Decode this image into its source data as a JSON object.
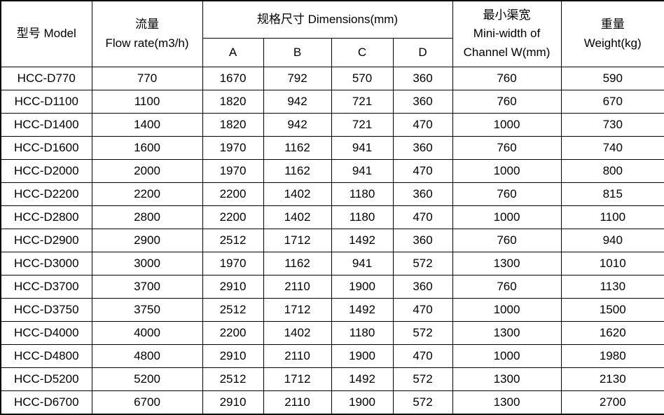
{
  "table": {
    "header": {
      "model": "型号 Model",
      "flow_cn": "流量",
      "flow_en": "Flow rate(m3/h)",
      "dimensions": "规格尺寸 Dimensions(mm)",
      "dim_cols": [
        "A",
        "B",
        "C",
        "D"
      ],
      "channel_cn": "最小渠宽",
      "channel_en_line1": "Mini-width of",
      "channel_en_line2": "Channel W(mm)",
      "weight_cn": "重量",
      "weight_en": "Weight(kg)"
    },
    "rows": [
      [
        "HCC-D770",
        "770",
        "1670",
        "792",
        "570",
        "360",
        "760",
        "590"
      ],
      [
        "HCC-D1100",
        "1100",
        "1820",
        "942",
        "721",
        "360",
        "760",
        "670"
      ],
      [
        "HCC-D1400",
        "1400",
        "1820",
        "942",
        "721",
        "470",
        "1000",
        "730"
      ],
      [
        "HCC-D1600",
        "1600",
        "1970",
        "1162",
        "941",
        "360",
        "760",
        "740"
      ],
      [
        "HCC-D2000",
        "2000",
        "1970",
        "1162",
        "941",
        "470",
        "1000",
        "800"
      ],
      [
        "HCC-D2200",
        "2200",
        "2200",
        "1402",
        "1180",
        "360",
        "760",
        "815"
      ],
      [
        "HCC-D2800",
        "2800",
        "2200",
        "1402",
        "1180",
        "470",
        "1000",
        "1100"
      ],
      [
        "HCC-D2900",
        "2900",
        "2512",
        "1712",
        "1492",
        "360",
        "760",
        "940"
      ],
      [
        "HCC-D3000",
        "3000",
        "1970",
        "1162",
        "941",
        "572",
        "1300",
        "1010"
      ],
      [
        "HCC-D3700",
        "3700",
        "2910",
        "2110",
        "1900",
        "360",
        "760",
        "1130"
      ],
      [
        "HCC-D3750",
        "3750",
        "2512",
        "1712",
        "1492",
        "470",
        "1000",
        "1500"
      ],
      [
        "HCC-D4000",
        "4000",
        "2200",
        "1402",
        "1180",
        "572",
        "1300",
        "1620"
      ],
      [
        "HCC-D4800",
        "4800",
        "2910",
        "2110",
        "1900",
        "470",
        "1000",
        "1980"
      ],
      [
        "HCC-D5200",
        "5200",
        "2512",
        "1712",
        "1492",
        "572",
        "1300",
        "2130"
      ],
      [
        "HCC-D6700",
        "6700",
        "2910",
        "2110",
        "1900",
        "572",
        "1300",
        "2700"
      ]
    ],
    "colors": {
      "border": "#000000",
      "text": "#000000",
      "background": "#ffffff"
    }
  }
}
